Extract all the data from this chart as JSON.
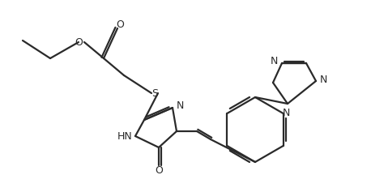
{
  "bg_color": "#ffffff",
  "line_color": "#2a2a2a",
  "text_color": "#2a2a2a",
  "line_width": 1.6,
  "font_size": 9,
  "figsize": [
    4.58,
    2.37
  ],
  "dpi": 100,
  "atoms": {
    "S_label": "S",
    "N1_label": "N",
    "N2_label": "N",
    "HN_label": "HN",
    "O1_label": "O",
    "O2_label": "O",
    "O3_label": "O"
  }
}
